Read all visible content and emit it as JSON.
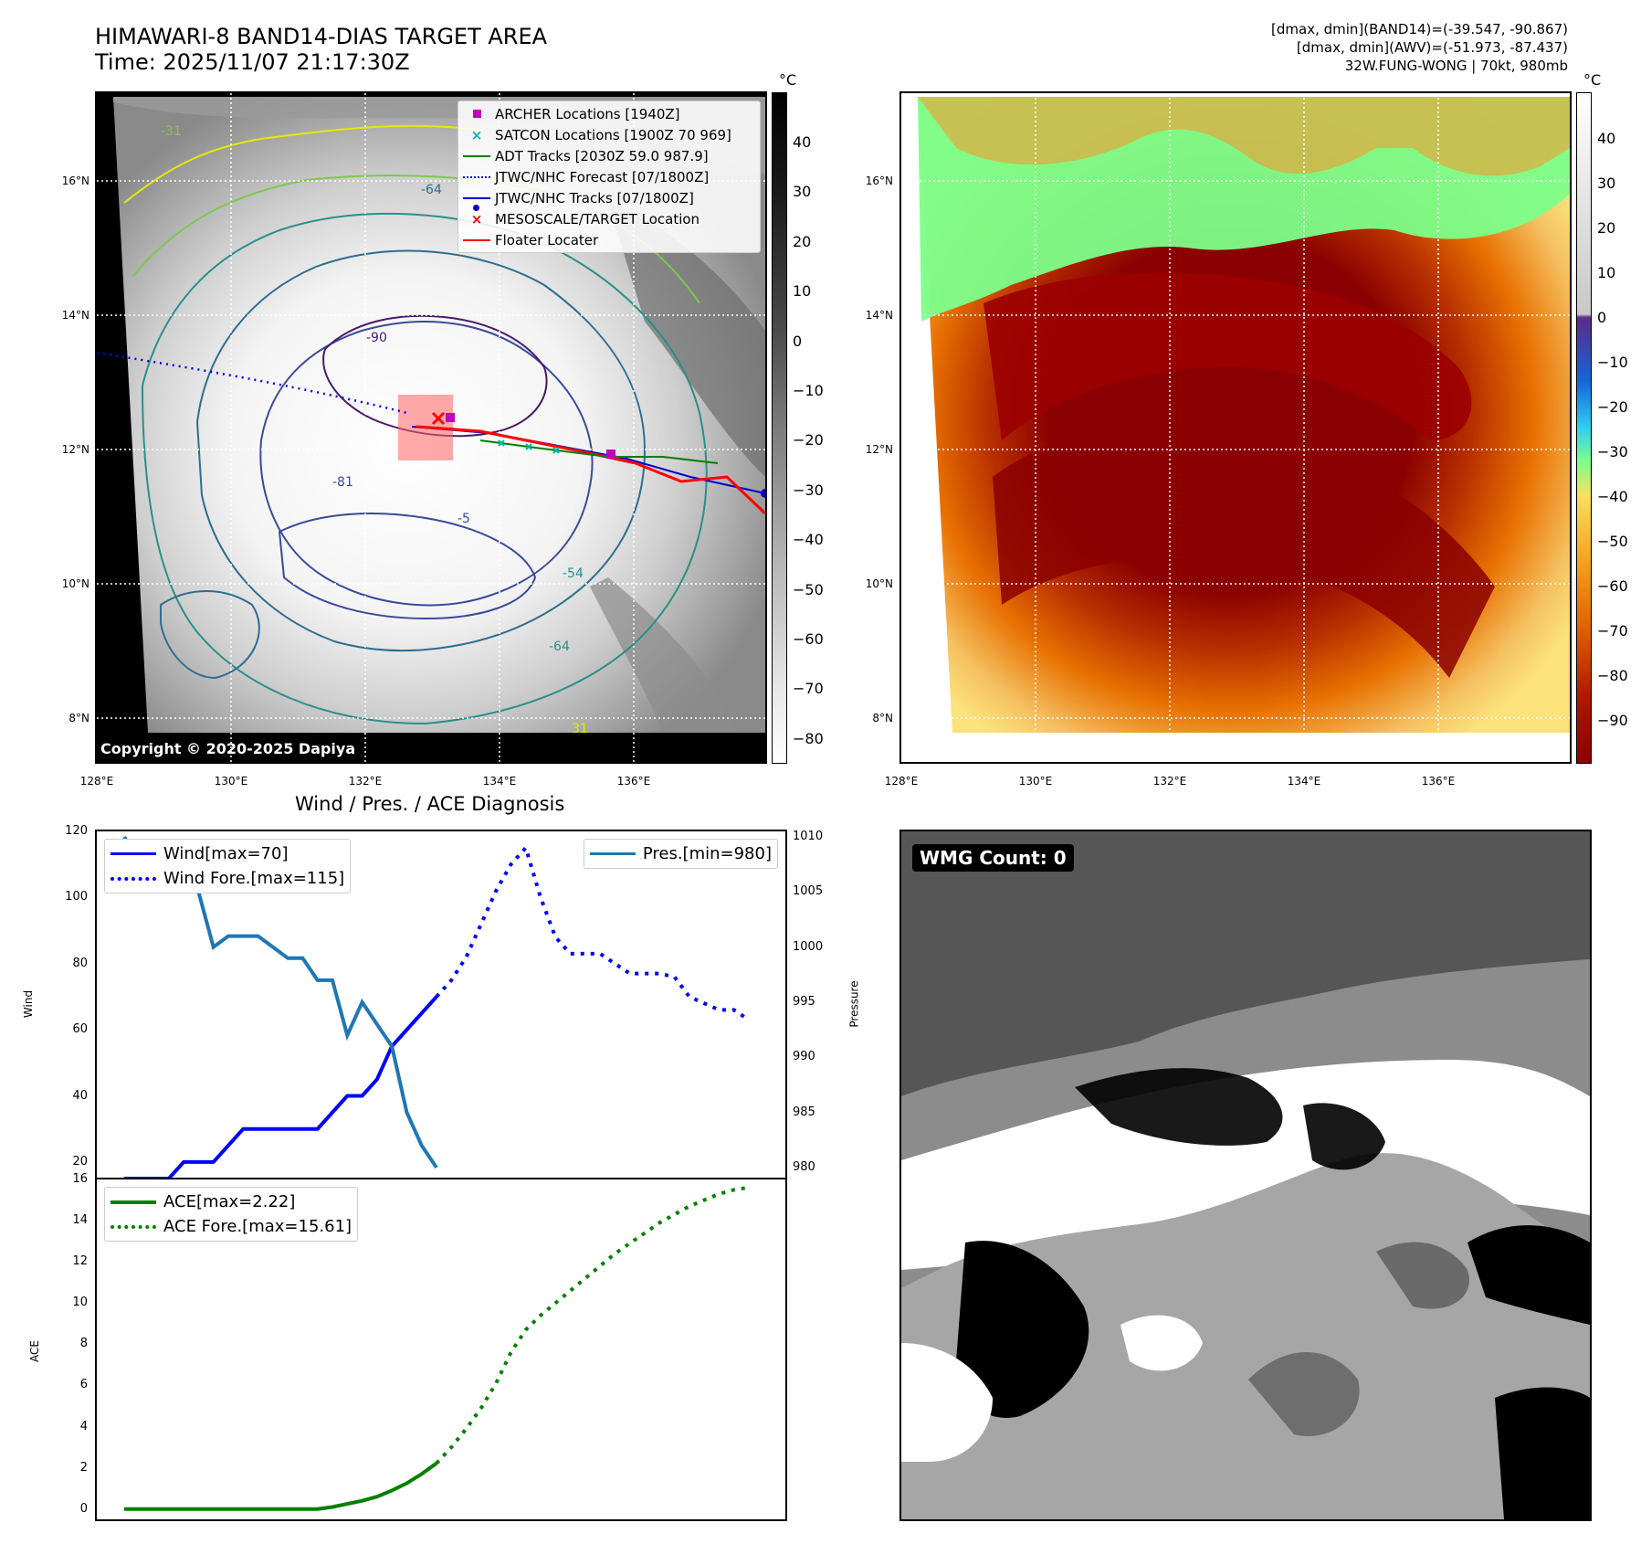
{
  "header": {
    "title_line1": "HIMAWARI-8 BAND14-DIAS TARGET AREA",
    "title_line2": "Time: 2025/11/07 21:17:30Z",
    "stat_line1": "[dmax, dmin](BAND14)=(-39.547, -90.867)",
    "stat_line2": "[dmax, dmin](AWV)=(-51.973, -87.437)",
    "stat_line3": "32W.FUNG-WONG | 70kt, 980mb"
  },
  "map": {
    "lat_labels": [
      "16°N",
      "14°N",
      "12°N",
      "10°N",
      "8°N"
    ],
    "lon_labels": [
      "128°E",
      "130°E",
      "132°E",
      "134°E",
      "136°E"
    ],
    "copyright": "Copyright © 2020-2025 Dapiya",
    "colorbar_unit": "°C",
    "gray_ticks": [
      "40",
      "30",
      "20",
      "10",
      "0",
      "−10",
      "−20",
      "−30",
      "−40",
      "−50",
      "−60",
      "−70",
      "−80"
    ],
    "color_ticks": [
      "40",
      "30",
      "20",
      "10",
      "0",
      "−10",
      "−20",
      "−30",
      "−40",
      "−50",
      "−60",
      "−70",
      "−80",
      "−90"
    ],
    "contour_labels": [
      "-31",
      "-64",
      "-90",
      "-81",
      "-54",
      "-5",
      "31",
      "-64"
    ],
    "legend": [
      {
        "label": "ARCHER Locations [1940Z]",
        "color": "#c000c0",
        "symbol": "square"
      },
      {
        "label": "SATCON Locations [1900Z 70 969]",
        "color": "#00b5b5",
        "symbol": "x"
      },
      {
        "label": "ADT Tracks [2030Z 59.0 987.9]",
        "color": "#008000",
        "symbol": "line"
      },
      {
        "label": "JTWC/NHC Forecast [07/1800Z]",
        "color": "#0000ff",
        "symbol": "dotted"
      },
      {
        "label": "JTWC/NHC Tracks [07/1800Z]",
        "color": "#0000cc",
        "symbol": "line-dot"
      },
      {
        "label": "MESOSCALE/TARGET Location",
        "color": "#ff0000",
        "symbol": "x"
      },
      {
        "label": "Floater Locater",
        "color": "#ff0000",
        "symbol": "line"
      }
    ]
  },
  "wmg": {
    "label": "WMG Count: 0"
  },
  "chart_data": [
    {
      "type": "line",
      "title": "Wind / Pres. / ACE Diagnosis",
      "ylabel": "Wind",
      "ylabel_right": "Pressure",
      "ylim": [
        15,
        120
      ],
      "ylim_right": [
        979,
        1010.5
      ],
      "yticks": [
        20,
        40,
        60,
        80,
        100,
        120
      ],
      "yticks_right": [
        980,
        985,
        990,
        995,
        1000,
        1005,
        1010
      ],
      "x": [
        0,
        1,
        2,
        3,
        4,
        5,
        6,
        7,
        8,
        9,
        10,
        11,
        12,
        13,
        14,
        15,
        16,
        17,
        18,
        19,
        20,
        21,
        22,
        23,
        24,
        25,
        26,
        27,
        28,
        29,
        30,
        31,
        32,
        33,
        34,
        35,
        36,
        37,
        38,
        39,
        40,
        41,
        42
      ],
      "series": [
        {
          "name": "Wind[max=70]",
          "color": "#0000ff",
          "style": "solid",
          "axis": "left",
          "x": [
            0,
            3,
            4,
            6,
            8,
            9,
            10,
            11,
            12,
            13,
            14,
            15,
            16,
            17,
            18,
            19,
            20,
            21
          ],
          "values": [
            15,
            15,
            20,
            20,
            30,
            30,
            30,
            30,
            30,
            30,
            35,
            40,
            40,
            45,
            55,
            60,
            65,
            70
          ]
        },
        {
          "name": "Wind Fore.[max=115]",
          "color": "#0000ff",
          "style": "dotted",
          "axis": "left",
          "x": [
            21,
            22,
            23,
            24,
            25,
            26,
            27,
            28,
            29,
            30,
            31,
            32,
            33,
            34,
            35,
            36,
            37,
            38,
            39,
            40,
            41,
            42
          ],
          "values": [
            70,
            75,
            82,
            92,
            102,
            110,
            115,
            100,
            88,
            83,
            83,
            83,
            80,
            77,
            77,
            77,
            76,
            70,
            68,
            66,
            66,
            63
          ]
        },
        {
          "name": "Pres.[min=980]",
          "color": "#1f77b4",
          "style": "solid",
          "axis": "right",
          "x": [
            0,
            1,
            2,
            3,
            4,
            5,
            6,
            7,
            8,
            9,
            10,
            11,
            12,
            13,
            14,
            15,
            16,
            17,
            18,
            19,
            20,
            21
          ],
          "values": [
            1010,
            1008,
            1007,
            1007,
            1006,
            1005,
            1000,
            1001,
            1001,
            1001,
            1000,
            999,
            999,
            997,
            997,
            992,
            995,
            993,
            991,
            985,
            982,
            980
          ]
        }
      ]
    },
    {
      "type": "line",
      "ylabel": "ACE",
      "ylim": [
        -0.5,
        16
      ],
      "yticks": [
        0,
        2,
        4,
        6,
        8,
        10,
        12,
        14,
        16
      ],
      "series": [
        {
          "name": "ACE[max=2.22]",
          "color": "#008000",
          "style": "solid",
          "x": [
            0,
            13,
            14,
            15,
            16,
            17,
            18,
            19,
            20,
            21
          ],
          "values": [
            0,
            0,
            0.1,
            0.25,
            0.4,
            0.6,
            0.9,
            1.25,
            1.7,
            2.22
          ]
        },
        {
          "name": "ACE Fore.[max=15.61]",
          "color": "#008000",
          "style": "dotted",
          "x": [
            21,
            22,
            23,
            24,
            25,
            26,
            27,
            28,
            29,
            30,
            31,
            32,
            33,
            34,
            35,
            36,
            37,
            38,
            39,
            40,
            41,
            42
          ],
          "values": [
            2.22,
            3.0,
            3.9,
            4.9,
            6.1,
            7.6,
            8.7,
            9.4,
            10.0,
            10.6,
            11.2,
            11.8,
            12.4,
            12.9,
            13.4,
            13.9,
            14.3,
            14.7,
            15.0,
            15.3,
            15.5,
            15.61
          ]
        }
      ]
    }
  ]
}
